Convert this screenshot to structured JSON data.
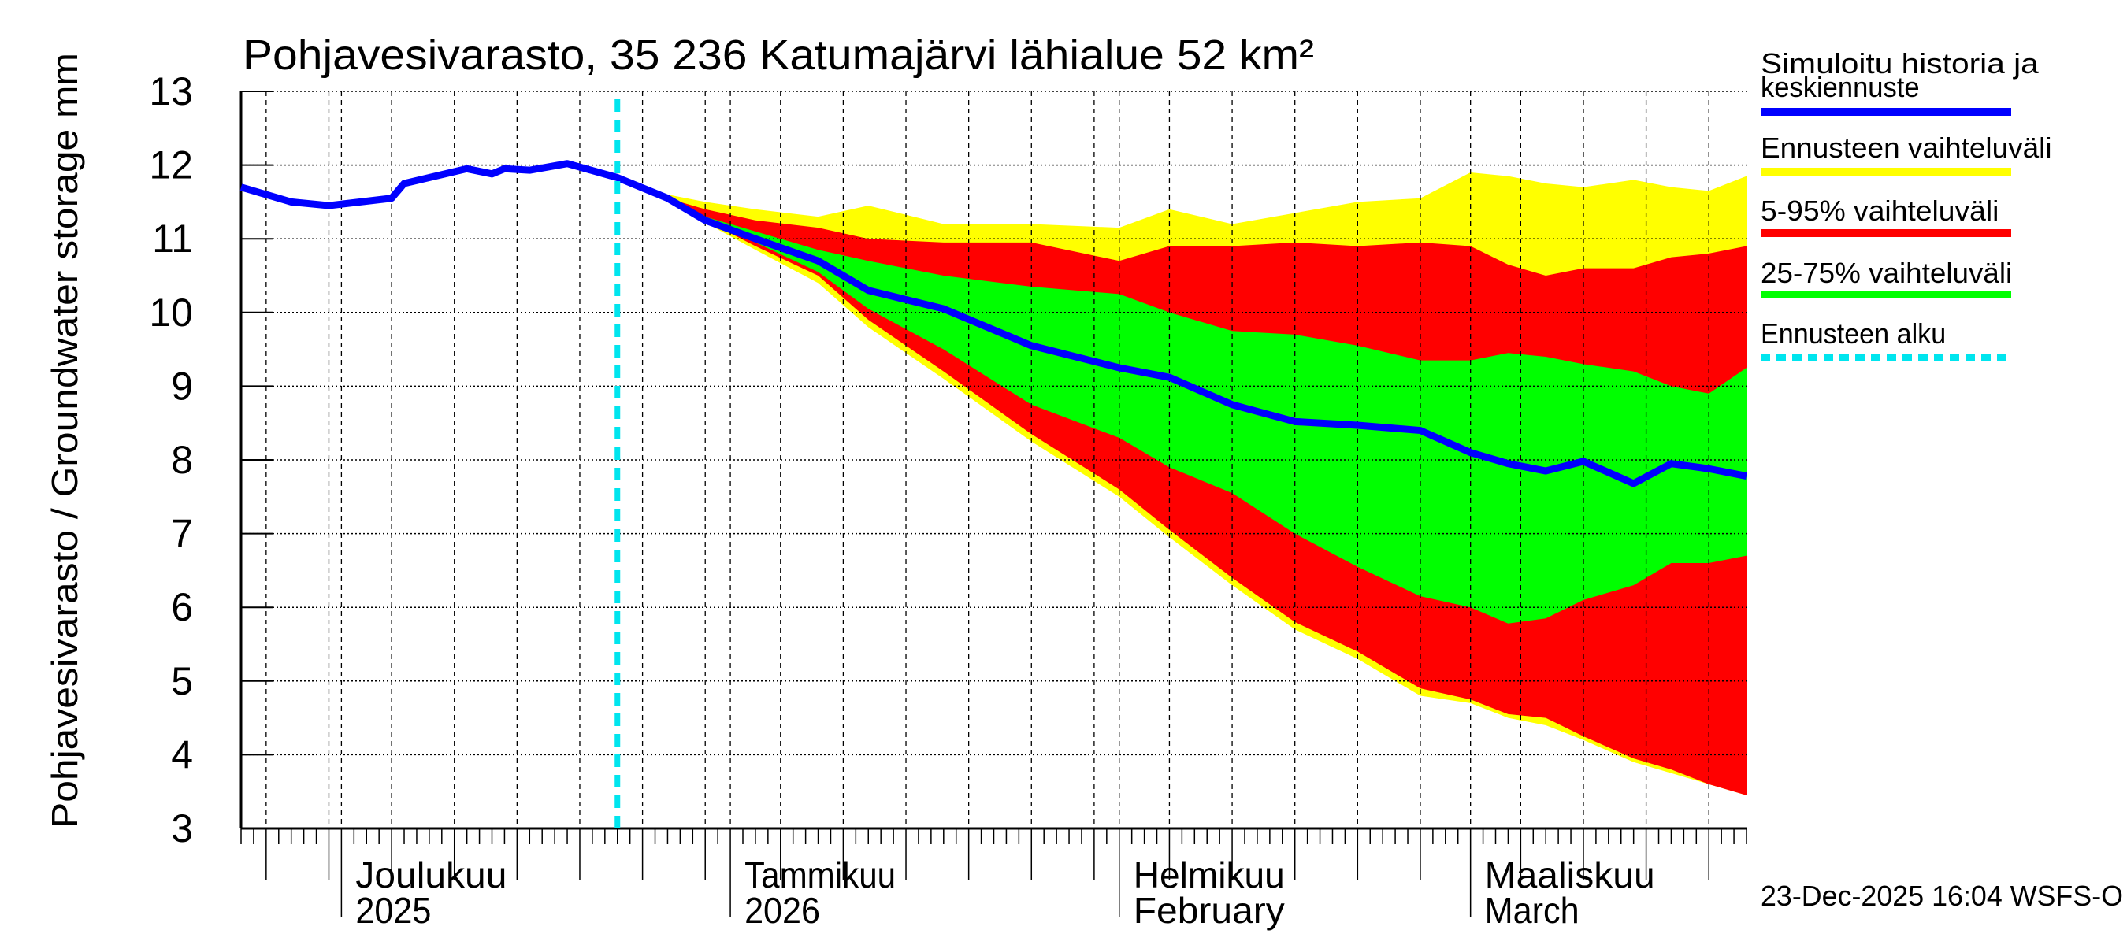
{
  "chart_data": {
    "type": "area",
    "title": "Pohjavesivarasto, 35 236 Katumajärvi lähialue 52 km²",
    "ylabel": "Pohjavesivarasto / Groundwater storage   mm",
    "ylim": [
      3,
      13
    ],
    "yticks": [
      3,
      4,
      5,
      6,
      7,
      8,
      9,
      10,
      11,
      12,
      13
    ],
    "xlim": [
      "2025-11-23",
      "2026-03-23"
    ],
    "grid": true,
    "legend_placement": "right",
    "xticks": [
      {
        "date": "2025-12-01",
        "line1": "Joulukuu",
        "line2": "2025"
      },
      {
        "date": "2026-01-01",
        "line1": "Tammikuu",
        "line2": "2026"
      },
      {
        "date": "2026-02-01",
        "line1": "Helmikuu",
        "line2": "February"
      },
      {
        "date": "2026-03-01",
        "line1": "Maaliskuu",
        "line2": "March"
      }
    ],
    "forecast_start": "2025-12-23",
    "colors": {
      "median": "#0000ff",
      "range": "#ffff00",
      "p5_95": "#ff0000",
      "p25_75": "#00ff00",
      "forecast_start": "#00e5ee"
    },
    "legend": [
      {
        "key": "median",
        "label_lines": [
          "Simuloitu historia ja",
          "keskiennuste"
        ]
      },
      {
        "key": "range",
        "label_lines": [
          "Ennusteen vaihteluväli"
        ]
      },
      {
        "key": "p5_95",
        "label_lines": [
          "5-95% vaihteluväli"
        ]
      },
      {
        "key": "p25_75",
        "label_lines": [
          "25-75% vaihteluväli"
        ]
      },
      {
        "key": "forecast_start",
        "label_lines": [
          "Ennusteen alku"
        ]
      }
    ],
    "history": {
      "dates": [
        "2025-11-23",
        "2025-11-27",
        "2025-11-30",
        "2025-12-05",
        "2025-12-06",
        "2025-12-11",
        "2025-12-13",
        "2025-12-14",
        "2025-12-16",
        "2025-12-19",
        "2025-12-23"
      ],
      "values": [
        11.7,
        11.5,
        11.45,
        11.55,
        11.75,
        11.95,
        11.88,
        11.95,
        11.93,
        12.02,
        11.83
      ]
    },
    "forecast": {
      "dates": [
        "2025-12-23",
        "2025-12-27",
        "2025-12-30",
        "2026-01-03",
        "2026-01-08",
        "2026-01-12",
        "2026-01-18",
        "2026-01-25",
        "2026-02-01",
        "2026-02-05",
        "2026-02-10",
        "2026-02-15",
        "2026-02-20",
        "2026-02-25",
        "2026-03-01",
        "2026-03-04",
        "2026-03-07",
        "2026-03-10",
        "2026-03-14",
        "2026-03-17",
        "2026-03-20",
        "2026-03-23"
      ],
      "max": [
        11.83,
        11.6,
        11.5,
        11.4,
        11.3,
        11.45,
        11.2,
        11.2,
        11.15,
        11.4,
        11.2,
        11.35,
        11.5,
        11.55,
        11.9,
        11.85,
        11.75,
        11.7,
        11.8,
        11.7,
        11.65,
        11.85
      ],
      "p95": [
        11.83,
        11.55,
        11.4,
        11.25,
        11.15,
        11.0,
        10.95,
        10.95,
        10.7,
        10.9,
        10.9,
        10.95,
        10.9,
        10.95,
        10.9,
        10.65,
        10.5,
        10.6,
        10.6,
        10.75,
        10.8,
        10.9
      ],
      "p75": [
        11.83,
        11.55,
        11.3,
        11.1,
        10.85,
        10.7,
        10.5,
        10.35,
        10.25,
        10.0,
        9.75,
        9.7,
        9.55,
        9.35,
        9.35,
        9.45,
        9.4,
        9.3,
        9.2,
        9.0,
        8.9,
        9.25
      ],
      "median": [
        11.83,
        11.55,
        11.25,
        11.0,
        10.7,
        10.3,
        10.05,
        9.55,
        9.25,
        9.12,
        8.75,
        8.52,
        8.47,
        8.4,
        8.1,
        7.95,
        7.85,
        7.98,
        7.68,
        7.95,
        7.88,
        7.78
      ],
      "p25": [
        11.83,
        11.55,
        11.25,
        10.95,
        10.55,
        10.05,
        9.5,
        8.75,
        8.3,
        7.9,
        7.55,
        7.0,
        6.55,
        6.15,
        6.0,
        5.78,
        5.85,
        6.1,
        6.3,
        6.6,
        6.6,
        6.7
      ],
      "p5": [
        11.83,
        11.55,
        11.25,
        10.9,
        10.5,
        9.9,
        9.2,
        8.35,
        7.6,
        7.05,
        6.4,
        5.8,
        5.4,
        4.9,
        4.75,
        4.55,
        4.5,
        4.25,
        3.95,
        3.8,
        3.6,
        3.45
      ],
      "min": [
        11.83,
        11.55,
        11.22,
        10.85,
        10.4,
        9.8,
        9.1,
        8.25,
        7.5,
        6.95,
        6.3,
        5.7,
        5.3,
        4.8,
        4.7,
        4.5,
        4.4,
        4.2,
        3.9,
        3.75,
        3.6,
        3.45
      ]
    }
  },
  "footer": {
    "timestamp": "23-Dec-2025 16:04 WSFS-O"
  }
}
